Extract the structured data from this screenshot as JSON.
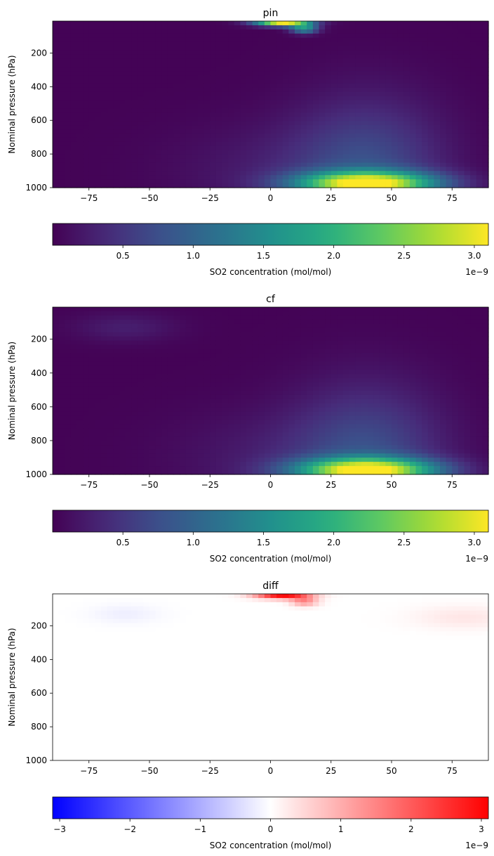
{
  "chart_data": [
    {
      "type": "heatmap",
      "title": "pin",
      "ylabel": "Nominal pressure (hPa)",
      "xlabel": "",
      "xlim": [
        -90,
        90
      ],
      "ylim": [
        1000,
        10
      ],
      "xticks": [
        -75,
        -50,
        -25,
        0,
        25,
        50,
        75
      ],
      "yticks": [
        200,
        400,
        600,
        800,
        1000
      ],
      "colormap": "viridis",
      "colorbar": {
        "label": "SO2 concentration (mol/mol)",
        "range": [
          0,
          3.1e-09
        ],
        "ticks": [
          "0.5",
          "1.0",
          "1.5",
          "2.0",
          "2.5",
          "3.0"
        ],
        "tick_values": [
          0.5,
          1.0,
          1.5,
          2.0,
          2.5,
          3.0
        ],
        "offset_text": "1e−9"
      },
      "features": [
        {
          "lat": 5,
          "pressure": 25,
          "lat_width": 8,
          "p_width": 12,
          "value": 3.1
        },
        {
          "lat": 14,
          "pressure": 55,
          "lat_width": 4,
          "p_width": 20,
          "value": 1.6
        },
        {
          "lat": 40,
          "pressure": 975,
          "lat_width": 20,
          "p_width": 50,
          "value": 2.8
        },
        {
          "lat": 40,
          "pressure": 900,
          "lat_width": 22,
          "p_width": 300,
          "value": 0.7
        },
        {
          "lat": 0,
          "pressure": 900,
          "lat_width": 30,
          "p_width": 200,
          "value": 0.2
        }
      ]
    },
    {
      "type": "heatmap",
      "title": "cf",
      "ylabel": "Nominal pressure (hPa)",
      "xlabel": "",
      "xlim": [
        -90,
        90
      ],
      "ylim": [
        1000,
        10
      ],
      "xticks": [
        -75,
        -50,
        -25,
        0,
        25,
        50,
        75
      ],
      "yticks": [
        200,
        400,
        600,
        800,
        1000
      ],
      "colormap": "viridis",
      "colorbar": {
        "label": "SO2 concentration (mol/mol)",
        "range": [
          0,
          3.1e-09
        ],
        "ticks": [
          "0.5",
          "1.0",
          "1.5",
          "2.0",
          "2.5",
          "3.0"
        ],
        "tick_values": [
          0.5,
          1.0,
          1.5,
          2.0,
          2.5,
          3.0
        ],
        "offset_text": "1e−9"
      },
      "features": [
        {
          "lat": 40,
          "pressure": 975,
          "lat_width": 20,
          "p_width": 50,
          "value": 2.8
        },
        {
          "lat": 40,
          "pressure": 900,
          "lat_width": 22,
          "p_width": 300,
          "value": 0.7
        },
        {
          "lat": 0,
          "pressure": 900,
          "lat_width": 30,
          "p_width": 200,
          "value": 0.2
        },
        {
          "lat": -60,
          "pressure": 130,
          "lat_width": 15,
          "p_width": 60,
          "value": 0.25
        }
      ]
    },
    {
      "type": "heatmap",
      "title": "diff",
      "ylabel": "Nominal pressure (hPa)",
      "xlabel": "",
      "xlim": [
        -90,
        90
      ],
      "ylim": [
        1000,
        10
      ],
      "xticks": [
        -75,
        -50,
        -25,
        0,
        25,
        50,
        75
      ],
      "yticks": [
        200,
        400,
        600,
        800,
        1000
      ],
      "colormap": "bwr",
      "colorbar": {
        "label": "SO2 concentration (mol/mol)",
        "range": [
          -3.1e-09,
          3.1e-09
        ],
        "ticks": [
          "−3",
          "−2",
          "−1",
          "0",
          "1",
          "2",
          "3"
        ],
        "tick_values": [
          -3,
          -2,
          -1,
          0,
          1,
          2,
          3
        ],
        "offset_text": "1e−9"
      },
      "features": [
        {
          "lat": 5,
          "pressure": 25,
          "lat_width": 8,
          "p_width": 12,
          "value": 3.0
        },
        {
          "lat": 14,
          "pressure": 55,
          "lat_width": 4,
          "p_width": 20,
          "value": 1.4
        },
        {
          "lat": 80,
          "pressure": 150,
          "lat_width": 15,
          "p_width": 50,
          "value": 0.3
        },
        {
          "lat": -60,
          "pressure": 130,
          "lat_width": 10,
          "p_width": 40,
          "value": -0.2
        }
      ]
    }
  ]
}
